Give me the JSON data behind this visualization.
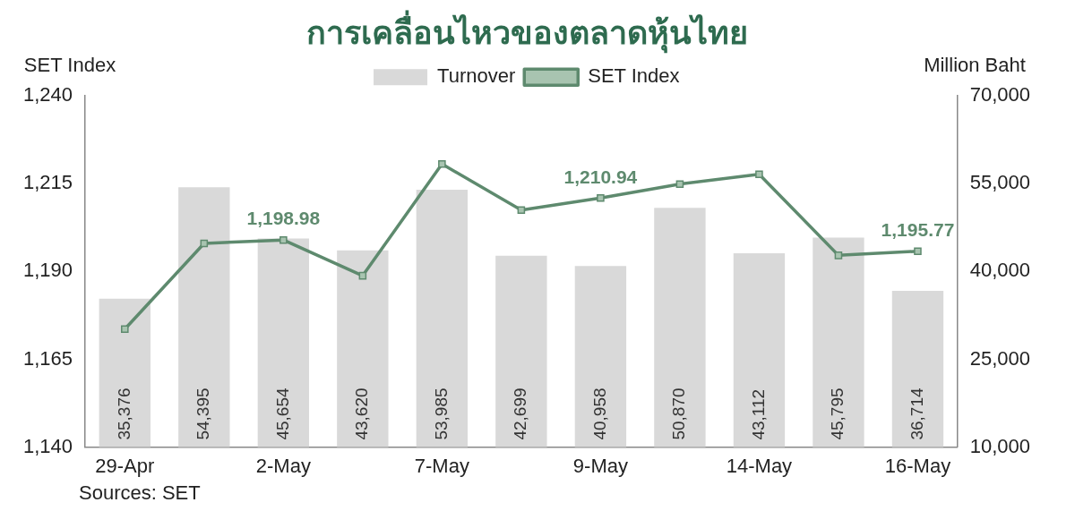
{
  "chart_data": {
    "type": "bar",
    "title": "การเคลื่อนไหวของตลาดหุ้นไทย",
    "ylabel": "SET Index",
    "y2label": "Million Baht",
    "categories": [
      "29-Apr",
      null,
      "2-May",
      null,
      "7-May",
      null,
      "9-May",
      null,
      "14-May",
      null,
      "16-May"
    ],
    "series": [
      {
        "name": "Turnover",
        "axis": "y2",
        "color": "#d9d9d9",
        "values": [
          35376,
          54395,
          45654,
          43620,
          53985,
          42699,
          40958,
          50870,
          43112,
          45795,
          36714
        ],
        "value_labels": [
          "35,376",
          "54,395",
          "45,654",
          "43,620",
          "53,985",
          "42,699",
          "40,958",
          "50,870",
          "43,112",
          "45,795",
          "36,714"
        ]
      },
      {
        "name": "SET Index",
        "type": "line",
        "axis": "y",
        "color": "#5e8a6e",
        "values": [
          1173.6,
          1198.0,
          1198.98,
          1188.8,
          1220.6,
          1207.5,
          1210.94,
          1214.9,
          1217.7,
          1194.6,
          1195.77
        ],
        "value_labels": [
          null,
          null,
          "1,198.98",
          null,
          null,
          null,
          "1,210.94",
          null,
          null,
          null,
          "1,195.77"
        ]
      }
    ],
    "ylim": [
      1140,
      1240
    ],
    "yticks": [
      "1,140",
      "1,165",
      "1,190",
      "1,215",
      "1,240"
    ],
    "y2lim": [
      10000,
      70000
    ],
    "y2ticks": [
      "10,000",
      "25,000",
      "40,000",
      "55,000",
      "70,000"
    ],
    "marker": "square",
    "grid": false,
    "legend": "top",
    "annotations": [
      "Sources: SET"
    ]
  }
}
